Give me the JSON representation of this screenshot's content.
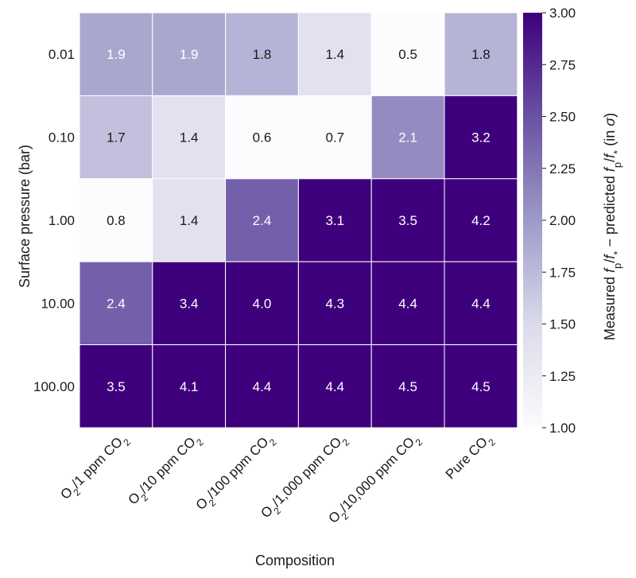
{
  "chart_data": {
    "type": "heatmap",
    "title": "",
    "xlabel": "Composition",
    "ylabel": "Surface pressure (bar)",
    "x_categories": [
      {
        "pre": "O",
        "sub": "2",
        "post": "/1 ppm CO",
        "sub2": "2"
      },
      {
        "pre": "O",
        "sub": "2",
        "post": "/10 ppm CO",
        "sub2": "2"
      },
      {
        "pre": "O",
        "sub": "2",
        "post": "/100 ppm CO",
        "sub2": "2"
      },
      {
        "pre": "O",
        "sub": "2",
        "post": "/1,000 ppm CO",
        "sub2": "2"
      },
      {
        "pre": "O",
        "sub": "2",
        "post": "/10,000 ppm CO",
        "sub2": "2"
      },
      {
        "pre": "",
        "sub": "",
        "post": "Pure CO",
        "sub2": "2"
      }
    ],
    "y_categories": [
      "0.01",
      "0.10",
      "1.00",
      "10.00",
      "100.00"
    ],
    "values": [
      [
        1.9,
        1.9,
        1.8,
        1.4,
        0.5,
        1.8
      ],
      [
        1.7,
        1.4,
        0.6,
        0.7,
        2.1,
        3.2
      ],
      [
        0.8,
        1.4,
        2.4,
        3.1,
        3.5,
        4.2
      ],
      [
        2.4,
        3.4,
        4.0,
        4.3,
        4.4,
        4.4
      ],
      [
        3.5,
        4.1,
        4.4,
        4.4,
        4.5,
        4.5
      ]
    ],
    "colorbar": {
      "label": "Measured f_p/f_* − predicted f_p/f_* (in σ)",
      "vmin": 1.0,
      "vmax": 3.0,
      "ticks": [
        "1.00",
        "1.25",
        "1.50",
        "1.75",
        "2.00",
        "2.25",
        "2.50",
        "2.75",
        "3.00"
      ],
      "colors": [
        "#fcfbfd",
        "#dadaeb",
        "#9e9ac8",
        "#6a51a3",
        "#3f007d"
      ]
    }
  }
}
